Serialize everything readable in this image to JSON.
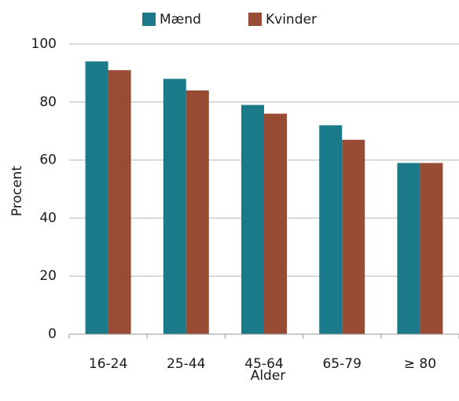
{
  "chart_data": {
    "type": "bar",
    "categories": [
      "16-24",
      "25-44",
      "45-64",
      "65-79",
      "≥ 80"
    ],
    "series": [
      {
        "name": "Mænd",
        "color": "#1b7a8a",
        "values": [
          94,
          88,
          79,
          72,
          59
        ]
      },
      {
        "name": "Kvinder",
        "color": "#974c33",
        "values": [
          91,
          84,
          76,
          67,
          59
        ]
      }
    ],
    "title": "",
    "xlabel": "Alder",
    "ylabel": "Procent",
    "ylim": [
      0,
      100
    ],
    "yticks": [
      "0",
      "20",
      "40",
      "60",
      "80",
      "100"
    ],
    "grid": true,
    "legend_position": "top"
  }
}
